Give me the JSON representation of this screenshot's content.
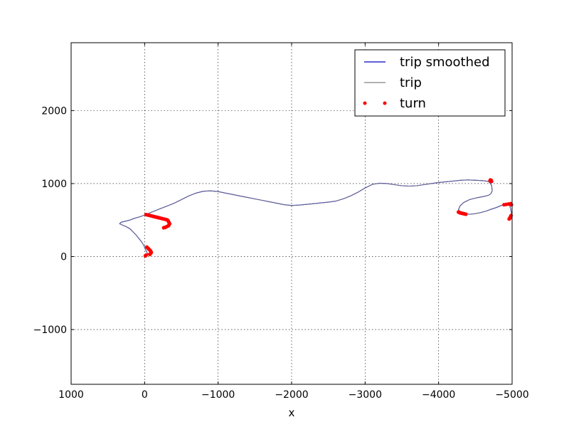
{
  "chart_data": {
    "type": "line",
    "title": "",
    "xlabel": "x",
    "ylabel": "",
    "xlim": [
      1000,
      -5000
    ],
    "ylim": [
      -1750,
      2930
    ],
    "x_ticks": [
      1000,
      0,
      -1000,
      -2000,
      -3000,
      -4000,
      -5000
    ],
    "x_tick_labels": [
      "1000",
      "0",
      "−1000",
      "−2000",
      "−3000",
      "−4000",
      "−5000"
    ],
    "y_ticks": [
      -1000,
      0,
      1000,
      2000
    ],
    "y_tick_labels": [
      "−1000",
      "0",
      "1000",
      "2000"
    ],
    "grid": true,
    "legend": {
      "position": "top-right",
      "entries": [
        "trip smoothed",
        "trip",
        "turn"
      ]
    },
    "series": [
      {
        "name": "trip smoothed",
        "style": "line",
        "color": "#0000bf",
        "x": [
          -70,
          -50,
          -30,
          -10,
          10,
          40,
          80,
          120,
          160,
          200,
          250,
          300,
          340,
          320,
          280,
          240,
          200,
          150,
          100,
          50,
          0,
          -100,
          -200,
          -300,
          -400,
          -500,
          -600,
          -700,
          -800,
          -900,
          -1000,
          -1100,
          -1200,
          -1300,
          -1400,
          -1500,
          -1600,
          -1700,
          -1800,
          -1900,
          -2000,
          -2100,
          -2200,
          -2300,
          -2400,
          -2500,
          -2600,
          -2700,
          -2800,
          -2900,
          -3000,
          -3100,
          -3200,
          -3300,
          -3400,
          -3500,
          -3600,
          -3700,
          -3800,
          -3900,
          -4000,
          -4100,
          -4200,
          -4300,
          -4400,
          -4500,
          -4600,
          -4680,
          -4720,
          -4730,
          -4710,
          -4680,
          -4620,
          -4520,
          -4420,
          -4340,
          -4290,
          -4270,
          -4300,
          -4360,
          -4420,
          -4480,
          -4560,
          -4640,
          -4720,
          -4780,
          -4830,
          -4870,
          -4920,
          -4960,
          -4980,
          -4990,
          -4980,
          -4970
        ],
        "y": [
          10,
          30,
          60,
          100,
          150,
          200,
          250,
          300,
          340,
          380,
          410,
          430,
          450,
          470,
          480,
          490,
          500,
          520,
          535,
          550,
          570,
          610,
          650,
          690,
          730,
          780,
          830,
          870,
          895,
          900,
          890,
          870,
          850,
          830,
          810,
          790,
          770,
          750,
          730,
          710,
          700,
          705,
          715,
          725,
          735,
          745,
          760,
          790,
          830,
          880,
          940,
          990,
          1005,
          1000,
          985,
          970,
          965,
          970,
          985,
          1000,
          1015,
          1025,
          1035,
          1045,
          1050,
          1045,
          1040,
          1030,
          980,
          900,
          860,
          840,
          825,
          805,
          780,
          740,
          690,
          640,
          610,
          590,
          580,
          585,
          600,
          620,
          650,
          670,
          690,
          705,
          720,
          710,
          660,
          600,
          540,
          520
        ]
      },
      {
        "name": "trip",
        "style": "line",
        "color": "#808080",
        "same_as": "trip smoothed"
      },
      {
        "name": "turn",
        "style": "markers",
        "color": "#ff0000",
        "x": [
          -70,
          -80,
          -90,
          -85,
          -75,
          -60,
          -50,
          -40,
          -30,
          -20,
          -10,
          -20,
          -40,
          -60,
          -80,
          -100,
          -120,
          -140,
          -160,
          -180,
          -200,
          -220,
          -240,
          -260,
          -280,
          -300,
          -310,
          -320,
          -330,
          -340,
          -330,
          -320,
          -300,
          -280,
          -260,
          -4700,
          -4710,
          -4720,
          -4715,
          -4705,
          -4270,
          -4280,
          -4290,
          -4300,
          -4310,
          -4330,
          -4350,
          -4370,
          -4890,
          -4920,
          -4950,
          -4980,
          -4990,
          -4985,
          -4975,
          -4970,
          -4960
        ],
        "y": [
          30,
          40,
          55,
          70,
          85,
          100,
          110,
          120,
          130,
          20,
          10,
          575,
          570,
          565,
          560,
          555,
          550,
          545,
          540,
          535,
          530,
          525,
          520,
          515,
          510,
          505,
          500,
          490,
          470,
          450,
          430,
          420,
          410,
          400,
          395,
          1040,
          1035,
          1030,
          1045,
          1050,
          610,
          605,
          600,
          598,
          595,
          590,
          585,
          580,
          710,
          715,
          720,
          725,
          710,
          560,
          540,
          525,
          515
        ]
      }
    ]
  }
}
